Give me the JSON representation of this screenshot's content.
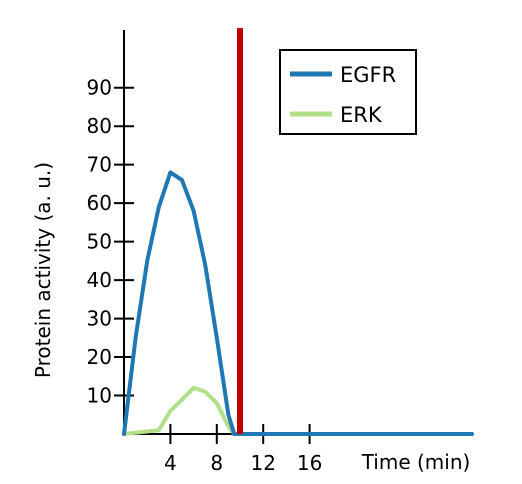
{
  "chart_data": {
    "type": "line",
    "xlabel": "Time (min)",
    "ylabel": "Protein activity (a. u.)",
    "xlim": [
      0,
      30
    ],
    "ylim": [
      0,
      105
    ],
    "xticks": [
      4,
      8,
      12,
      16
    ],
    "yticks": [
      10,
      20,
      30,
      40,
      50,
      60,
      70,
      80,
      90
    ],
    "grid": false,
    "legend_position": "top-right",
    "marker_line": {
      "x": 10,
      "color": "#c00000"
    },
    "series": [
      {
        "name": "EGFR",
        "color": "#1f77b4",
        "x": [
          0,
          1,
          2,
          3,
          4,
          5,
          6,
          7,
          8,
          9,
          9.5,
          10,
          30
        ],
        "values": [
          0,
          25,
          45,
          59,
          68,
          66,
          58,
          44,
          25,
          5,
          0,
          0,
          0
        ]
      },
      {
        "name": "ERK",
        "color": "#b2df8a",
        "x": [
          0,
          3,
          4,
          5,
          6,
          7,
          8,
          9,
          9.5,
          10,
          30
        ],
        "values": [
          0,
          1,
          6,
          9,
          12,
          11,
          8,
          2,
          0,
          0,
          0
        ]
      }
    ]
  }
}
